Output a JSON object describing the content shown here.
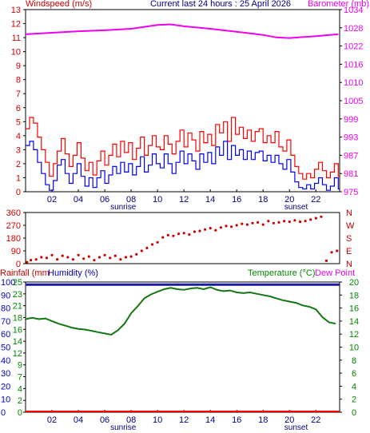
{
  "header": {
    "left": "Windspeed (m/s)",
    "center": "Current last 24 hours : 25 April 2026",
    "right": "Barometer (mb)"
  },
  "bottom_header": {
    "rainfall": "Rainfall (mm",
    "humidity": "Humidity (%)",
    "temperature": "Temperature (°C)",
    "dewpoint": "Dew Point"
  },
  "day_labels": {
    "sunrise": "sunrise",
    "sunset": "sunset"
  },
  "colors": {
    "wind_axis": "#cc0000",
    "baro": "#ee00ee",
    "gust": "#ff0000",
    "avg": "#0000ff",
    "dir": "#cc0000",
    "rain": "#ff0000",
    "humidity_axis": "#0000cc",
    "humidity": "#1a1aa0",
    "temp": "#117711",
    "temp_axis": "#008800"
  },
  "chart_data": [
    {
      "type": "line",
      "name": "wind-baro",
      "x_ticks": [
        "02",
        "04",
        "06",
        "08",
        "10",
        "12",
        "14",
        "16",
        "18",
        "20",
        "22"
      ],
      "x_hours": [
        2,
        4,
        6,
        8,
        10,
        12,
        14,
        16,
        18,
        20,
        22
      ],
      "xlim": [
        0,
        23.8
      ],
      "y_left_ticks": [
        "0",
        "1",
        "2",
        "3",
        "4",
        "5",
        "6",
        "7",
        "8",
        "9",
        "10",
        "11",
        "12",
        "13"
      ],
      "ylim_left": [
        0,
        13
      ],
      "y_right_ticks": [
        "975",
        "981",
        "987",
        "993",
        "999",
        "1005",
        "1010",
        "1016",
        "1022",
        "1028",
        "1034"
      ],
      "ylim_right": [
        975,
        1034
      ],
      "series": [
        {
          "key": "baro",
          "x": [
            0,
            2,
            4,
            6,
            8,
            10,
            11,
            12,
            14,
            16,
            18,
            19,
            20,
            22,
            23.7
          ],
          "y": [
            1026,
            1026.5,
            1027,
            1027.3,
            1027.8,
            1029,
            1029.2,
            1028.6,
            1027.8,
            1026.8,
            1025.8,
            1025,
            1024.8,
            1025.4,
            1026
          ]
        },
        {
          "key": "gust",
          "x": [
            0,
            0.3,
            0.6,
            0.9,
            1.2,
            1.5,
            1.8,
            2.1,
            2.4,
            2.7,
            3.0,
            3.3,
            3.6,
            3.9,
            4.2,
            4.5,
            4.8,
            5.1,
            5.4,
            5.7,
            6.0,
            6.3,
            6.6,
            6.9,
            7.2,
            7.5,
            7.8,
            8.1,
            8.4,
            8.7,
            9.0,
            9.3,
            9.6,
            9.9,
            10.2,
            10.5,
            10.8,
            11.1,
            11.4,
            11.7,
            12.0,
            12.3,
            12.6,
            12.9,
            13.2,
            13.5,
            13.8,
            14.1,
            14.4,
            14.7,
            15.0,
            15.3,
            15.6,
            15.9,
            16.2,
            16.5,
            16.8,
            17.1,
            17.4,
            17.7,
            18.0,
            18.3,
            18.6,
            18.9,
            19.2,
            19.5,
            19.8,
            20.1,
            20.4,
            20.7,
            21.0,
            21.3,
            21.6,
            21.9,
            22.2,
            22.5,
            22.8,
            23.1,
            23.4,
            23.7
          ],
          "y": [
            4.5,
            5.3,
            4.9,
            3.9,
            3.0,
            2.1,
            1.1,
            2.0,
            2.9,
            3.8,
            2.7,
            1.8,
            2.6,
            3.5,
            2.4,
            1.5,
            2.1,
            1.2,
            2.2,
            2.9,
            1.9,
            2.6,
            3.4,
            2.5,
            3.6,
            2.8,
            3.5,
            2.3,
            3.1,
            3.9,
            2.6,
            3.3,
            4.0,
            3.2,
            3.0,
            4.0,
            3.4,
            2.7,
            3.6,
            4.4,
            3.2,
            4.2,
            3.7,
            2.9,
            4.3,
            3.5,
            4.1,
            3.3,
            4.8,
            4.2,
            5.0,
            3.6,
            5.3,
            4.1,
            4.6,
            3.8,
            4.4,
            3.6,
            4.3,
            4.5,
            3.5,
            4.0,
            3.5,
            4.3,
            3.2,
            2.9,
            3.7,
            2.6,
            1.8,
            1.3,
            0.9,
            1.3,
            1.0,
            1.6,
            2.1,
            1.5,
            1.0,
            1.4,
            2.0,
            1.1
          ]
        },
        {
          "key": "avg",
          "x": [
            0,
            0.3,
            0.6,
            0.9,
            1.2,
            1.5,
            1.8,
            2.1,
            2.4,
            2.7,
            3.0,
            3.3,
            3.6,
            3.9,
            4.2,
            4.5,
            4.8,
            5.1,
            5.4,
            5.7,
            6.0,
            6.3,
            6.6,
            6.9,
            7.2,
            7.5,
            7.8,
            8.1,
            8.4,
            8.7,
            9.0,
            9.3,
            9.6,
            9.9,
            10.2,
            10.5,
            10.8,
            11.1,
            11.4,
            11.7,
            12.0,
            12.3,
            12.6,
            12.9,
            13.2,
            13.5,
            13.8,
            14.1,
            14.4,
            14.7,
            15.0,
            15.3,
            15.6,
            15.9,
            16.2,
            16.5,
            16.8,
            17.1,
            17.4,
            17.7,
            18.0,
            18.3,
            18.6,
            18.9,
            19.2,
            19.5,
            19.8,
            20.1,
            20.4,
            20.7,
            21.0,
            21.3,
            21.6,
            21.9,
            22.2,
            22.5,
            22.8,
            23.1,
            23.4,
            23.7
          ],
          "y": [
            3.3,
            3.6,
            3.0,
            2.1,
            1.3,
            0.5,
            0.1,
            0.8,
            1.9,
            2.3,
            1.3,
            0.6,
            1.3,
            2.0,
            1.1,
            0.4,
            1.0,
            0.3,
            1.0,
            1.5,
            0.6,
            1.2,
            1.8,
            1.3,
            2.1,
            1.4,
            2.0,
            1.2,
            1.8,
            2.5,
            1.4,
            1.9,
            2.7,
            2.0,
            1.7,
            2.7,
            2.0,
            1.3,
            2.1,
            2.9,
            2.0,
            2.7,
            2.2,
            1.6,
            2.7,
            2.1,
            2.8,
            2.0,
            3.2,
            2.6,
            3.6,
            2.3,
            3.3,
            2.6,
            3.0,
            2.3,
            2.9,
            2.3,
            2.8,
            2.9,
            2.2,
            2.6,
            2.1,
            2.6,
            2.0,
            1.6,
            2.3,
            1.4,
            0.7,
            0.3,
            0.2,
            0.5,
            0.2,
            0.6,
            1.0,
            0.5,
            0.1,
            0.4,
            1.0,
            0.2
          ]
        }
      ]
    },
    {
      "type": "scatter",
      "name": "wind-direction",
      "xlim": [
        0,
        23.8
      ],
      "y_ticks": [
        "0",
        "90",
        "180",
        "270",
        "360"
      ],
      "ylim": [
        0,
        360
      ],
      "compass": [
        "N",
        "E",
        "S",
        "W",
        "N"
      ],
      "x": [
        0.1,
        0.4,
        0.8,
        1.2,
        1.6,
        2.0,
        2.4,
        2.8,
        3.2,
        3.6,
        4.0,
        4.4,
        4.8,
        5.2,
        5.6,
        6.0,
        6.4,
        6.8,
        7.2,
        7.6,
        8.0,
        8.4,
        8.8,
        9.2,
        9.6,
        10.0,
        10.4,
        10.8,
        11.2,
        11.6,
        12.0,
        12.4,
        12.8,
        13.2,
        13.6,
        14.0,
        14.4,
        14.8,
        15.2,
        15.6,
        16.0,
        16.4,
        16.8,
        17.2,
        17.6,
        18.0,
        18.4,
        18.8,
        19.2,
        19.6,
        20.0,
        20.4,
        20.8,
        21.2,
        21.6,
        22.0,
        22.4,
        22.8,
        23.2,
        23.6
      ],
      "y": [
        10,
        25,
        30,
        45,
        40,
        60,
        30,
        55,
        45,
        30,
        60,
        35,
        50,
        25,
        45,
        60,
        40,
        55,
        30,
        45,
        50,
        65,
        90,
        110,
        135,
        150,
        185,
        200,
        195,
        210,
        215,
        205,
        225,
        230,
        240,
        250,
        235,
        255,
        265,
        260,
        270,
        280,
        275,
        285,
        290,
        275,
        300,
        285,
        290,
        300,
        295,
        305,
        295,
        300,
        310,
        320,
        330,
        20,
        80,
        90
      ]
    },
    {
      "type": "line",
      "name": "temp-humidity",
      "xlim": [
        0,
        23.8
      ],
      "y_hum_ticks": [
        "0",
        "10",
        "20",
        "30",
        "40",
        "50",
        "60",
        "70",
        "80",
        "90",
        "100"
      ],
      "y_temp_left_ticks": [
        "0",
        "2",
        "4",
        "7",
        "9",
        "12",
        "14",
        "16",
        "18",
        "21",
        "23",
        "25"
      ],
      "y_temp_right_ticks": [
        "0",
        "2",
        "4",
        "6",
        "8",
        "10",
        "12",
        "14",
        "16",
        "18",
        "20"
      ],
      "ylim_temp": [
        0,
        20
      ],
      "rain_total": 0,
      "humidity_value": 98,
      "series": [
        {
          "key": "temp",
          "x": [
            0,
            0.5,
            1,
            1.5,
            2,
            2.5,
            3,
            3.5,
            4,
            4.5,
            5,
            5.5,
            6,
            6.5,
            7,
            7.5,
            8,
            8.5,
            9,
            9.5,
            10,
            10.5,
            11,
            11.5,
            12,
            12.5,
            13,
            13.5,
            14,
            14.5,
            15,
            15.5,
            16,
            16.5,
            17,
            17.5,
            18,
            18.5,
            19,
            19.5,
            20,
            20.5,
            21,
            21.5,
            22,
            22.5,
            23,
            23.5
          ],
          "y": [
            14.3,
            14.5,
            14.3,
            14.4,
            14.0,
            13.6,
            13.3,
            13.0,
            12.8,
            12.7,
            12.5,
            12.3,
            12.1,
            11.9,
            12.6,
            13.6,
            15.2,
            16.3,
            17.5,
            18.1,
            18.5,
            18.9,
            19.1,
            18.9,
            18.8,
            19.0,
            19.1,
            18.9,
            19.2,
            18.8,
            18.6,
            18.7,
            18.4,
            18.3,
            18.4,
            18.2,
            18.0,
            17.8,
            17.5,
            17.2,
            17.0,
            16.8,
            16.4,
            16.2,
            15.8,
            14.6,
            13.8,
            13.6
          ]
        }
      ]
    }
  ]
}
